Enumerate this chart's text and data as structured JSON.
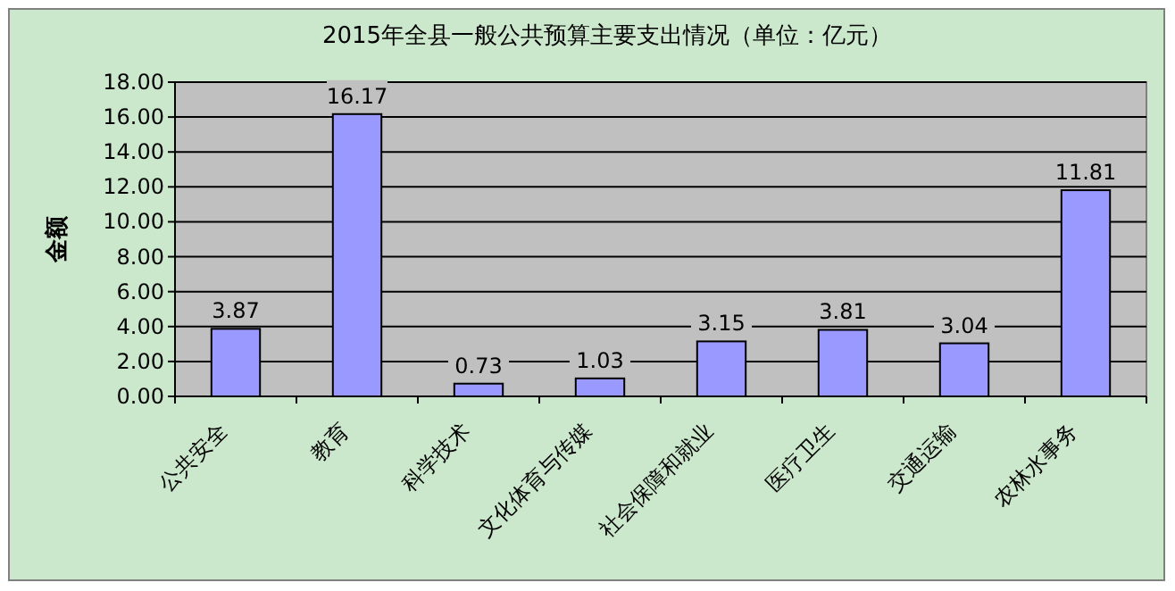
{
  "chart_data": {
    "type": "bar",
    "title": "2015年全县一般公共预算主要支出情况（单位：亿元）",
    "ylabel": "金额",
    "categories": [
      "公共安全",
      "教育",
      "科学技术",
      "文化体育与传媒",
      "社会保障和就业",
      "医疗卫生",
      "交通运输",
      "农林水事务"
    ],
    "values": [
      3.87,
      16.17,
      0.73,
      1.03,
      3.15,
      3.81,
      3.04,
      11.81
    ],
    "color": "#9999ff",
    "ylim": [
      0,
      18
    ],
    "yticks": [
      {
        "value": 0,
        "label": "0.00"
      },
      {
        "value": 2,
        "label": "2.00"
      },
      {
        "value": 4,
        "label": "4.00"
      },
      {
        "value": 6,
        "label": "6.00"
      },
      {
        "value": 8,
        "label": "8.00"
      },
      {
        "value": 10,
        "label": "10.00"
      },
      {
        "value": 12,
        "label": "12.00"
      },
      {
        "value": 14,
        "label": "14.00"
      },
      {
        "value": 16,
        "label": "16.00"
      },
      {
        "value": 18,
        "label": "18.00"
      }
    ],
    "grid": "y",
    "data_labels": true
  }
}
